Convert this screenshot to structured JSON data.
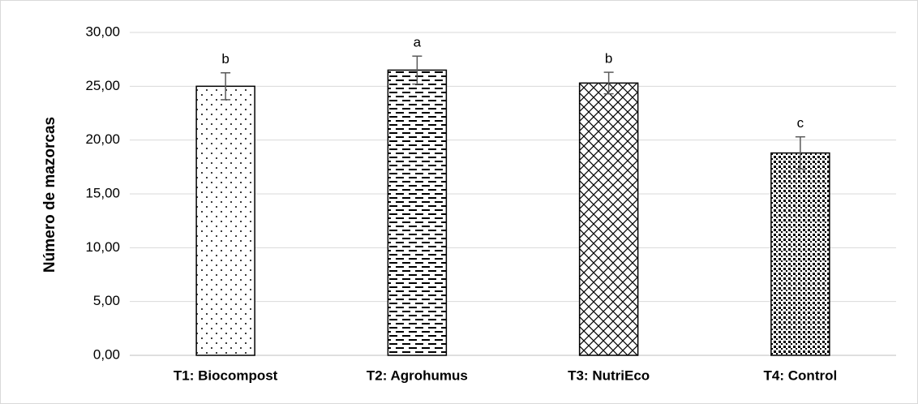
{
  "chart_data": {
    "type": "bar",
    "y_label": "Número de mazorcas",
    "categories": [
      "T1: Biocompost",
      "T2: Agrohumus",
      "T3: NutriEco",
      "T4: Control"
    ],
    "values": [
      25.0,
      26.5,
      25.3,
      18.8
    ],
    "errors": [
      1.25,
      1.3,
      1.0,
      1.5
    ],
    "letters": [
      "b",
      "a",
      "b",
      "c"
    ],
    "color": "#000000",
    "ylim": [
      0,
      30
    ],
    "yticks": [
      {
        "value": 0,
        "label": "0,00"
      },
      {
        "value": 5,
        "label": "5,00"
      },
      {
        "value": 10,
        "label": "10,00"
      },
      {
        "value": 15,
        "label": "15,00"
      },
      {
        "value": 20,
        "label": "20,00"
      },
      {
        "value": 25,
        "label": "25,00"
      },
      {
        "value": 30,
        "label": "30,00"
      }
    ],
    "grid": true
  }
}
